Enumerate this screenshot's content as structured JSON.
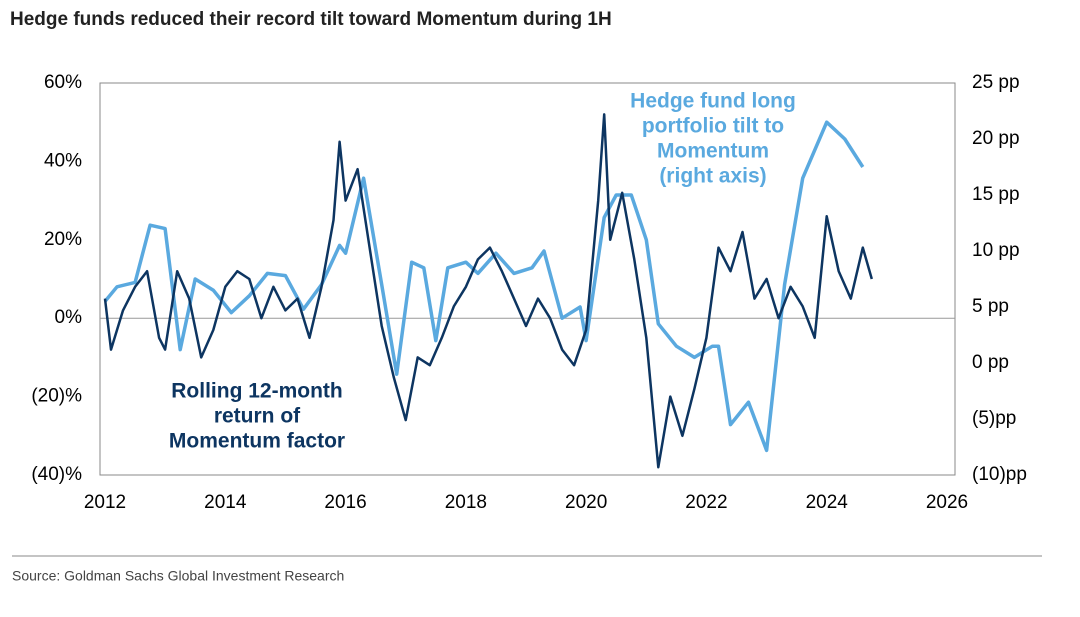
{
  "chart_data": {
    "type": "line",
    "title": "Hedge funds reduced their record tilt toward Momentum during 1H",
    "source": "Source: Goldman Sachs Global Investment Research",
    "xlim": [
      2012,
      2026
    ],
    "xticks": [
      2012,
      2014,
      2016,
      2018,
      2020,
      2022,
      2024,
      2026
    ],
    "ylim": [
      -40,
      60
    ],
    "yticks": [
      {
        "value": -40,
        "label": "(40)%"
      },
      {
        "value": -20,
        "label": "(20)%"
      },
      {
        "value": 0,
        "label": "0%"
      },
      {
        "value": 20,
        "label": "20%"
      },
      {
        "value": 40,
        "label": "40%"
      },
      {
        "value": 60,
        "label": "60%"
      }
    ],
    "y2lim": [
      -10,
      25
    ],
    "y2ticks": [
      {
        "value": -10,
        "label": "(10)pp"
      },
      {
        "value": -5,
        "label": "(5)pp"
      },
      {
        "value": 0,
        "label": "0 pp"
      },
      {
        "value": 5,
        "label": "5 pp"
      },
      {
        "value": 10,
        "label": "10 pp"
      },
      {
        "value": 15,
        "label": "15 pp"
      },
      {
        "value": 20,
        "label": "20 pp"
      },
      {
        "value": 25,
        "label": "25 pp"
      }
    ],
    "annotations": [
      {
        "lines": [
          "Rolling 12-month",
          "return of",
          "Momentum factor"
        ]
      },
      {
        "lines": [
          "Hedge fund long",
          "portfolio tilt to",
          "Momentum",
          "(right axis)"
        ]
      }
    ],
    "series": [
      {
        "name": "Rolling 12-month return of Momentum factor",
        "color": "#0d3561",
        "axis": "y",
        "x": [
          2012.0,
          2012.1,
          2012.3,
          2012.5,
          2012.7,
          2012.9,
          2013.0,
          2013.2,
          2013.4,
          2013.6,
          2013.8,
          2014.0,
          2014.2,
          2014.4,
          2014.6,
          2014.8,
          2015.0,
          2015.2,
          2015.4,
          2015.6,
          2015.8,
          2015.9,
          2016.0,
          2016.2,
          2016.4,
          2016.6,
          2016.8,
          2017.0,
          2017.2,
          2017.4,
          2017.6,
          2017.8,
          2018.0,
          2018.2,
          2018.4,
          2018.6,
          2018.8,
          2019.0,
          2019.2,
          2019.4,
          2019.6,
          2019.8,
          2020.0,
          2020.2,
          2020.3,
          2020.4,
          2020.6,
          2020.8,
          2021.0,
          2021.2,
          2021.4,
          2021.6,
          2021.8,
          2022.0,
          2022.2,
          2022.4,
          2022.6,
          2022.8,
          2023.0,
          2023.2,
          2023.4,
          2023.6,
          2023.8,
          2024.0,
          2024.2,
          2024.4,
          2024.6,
          2024.75
        ],
        "values": [
          5,
          -8,
          2,
          8,
          12,
          -5,
          -8,
          12,
          5,
          -10,
          -3,
          8,
          12,
          10,
          0,
          8,
          2,
          5,
          -5,
          8,
          25,
          45,
          30,
          38,
          18,
          -2,
          -15,
          -26,
          -10,
          -12,
          -5,
          3,
          8,
          15,
          18,
          12,
          5,
          -2,
          5,
          0,
          -8,
          -12,
          -3,
          30,
          52,
          20,
          32,
          15,
          -5,
          -38,
          -20,
          -30,
          -18,
          -5,
          18,
          12,
          22,
          5,
          10,
          0,
          8,
          3,
          -5,
          26,
          12,
          5,
          18,
          10
        ]
      },
      {
        "name": "Hedge fund long portfolio tilt to Momentum",
        "color": "#5aa9df",
        "axis": "y2",
        "x": [
          2012.0,
          2012.2,
          2012.5,
          2012.75,
          2013.0,
          2013.25,
          2013.5,
          2013.8,
          2014.1,
          2014.4,
          2014.7,
          2015.0,
          2015.3,
          2015.6,
          2015.9,
          2016.0,
          2016.3,
          2016.6,
          2016.85,
          2017.1,
          2017.3,
          2017.5,
          2017.7,
          2018.0,
          2018.2,
          2018.5,
          2018.8,
          2019.1,
          2019.3,
          2019.6,
          2019.9,
          2020.0,
          2020.3,
          2020.5,
          2020.75,
          2021.0,
          2021.2,
          2021.5,
          2021.8,
          2022.1,
          2022.2,
          2022.4,
          2022.7,
          2023.0,
          2023.3,
          2023.6,
          2024.0,
          2024.3,
          2024.6
        ],
        "values": [
          5.5,
          6.8,
          7.2,
          12.3,
          12.0,
          1.2,
          7.5,
          6.5,
          4.5,
          6.0,
          8.0,
          7.8,
          4.8,
          7.0,
          10.5,
          9.8,
          16.5,
          7.0,
          -1.0,
          9.0,
          8.5,
          2.0,
          8.5,
          9.0,
          8.0,
          9.8,
          8.0,
          8.5,
          10.0,
          4.0,
          5.0,
          2.0,
          13.0,
          15.0,
          15.0,
          11.0,
          3.5,
          1.5,
          0.5,
          1.5,
          1.5,
          -5.5,
          -3.5,
          -7.8,
          7.0,
          16.5,
          21.5,
          20.0,
          17.5
        ]
      }
    ]
  }
}
